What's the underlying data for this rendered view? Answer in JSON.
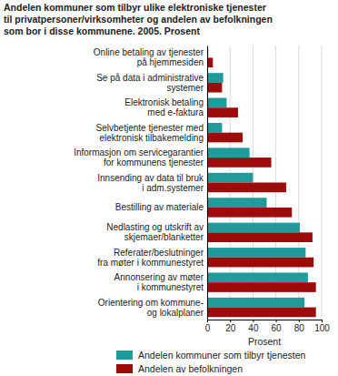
{
  "chart_data": {
    "type": "bar",
    "orientation": "horizontal",
    "title": "Andelen kommuner som tilbyr ulike elektroniske tjenester\ntil privatpersoner/virksomheter og andelen av befolkningen\nsom bor i disse kommunene. 2005. Prosent",
    "x_label": "Prosent",
    "categories": [
      "Online betaling av tjenester\npå hjemmesiden",
      "Se på data i administrative\nsystemer",
      "Elektronisk betaling\nmed e-faktura",
      "Selvbetjente tjenester med\nelektronisk tilbakemelding",
      "Informasjon om servicegarantier\nfor kommunens tjenester",
      "Innsending av data til bruk\ni adm.systemer",
      "Bestilling av materiale",
      "Nedlasting og utskrift av\nskjemaer/blanketter",
      "Referater/beslutninger\nfra møter i kommunestyret",
      "Annonsering av møter\ni kommunestyret",
      "Orientering om kommune-\nog lokalplaner"
    ],
    "series": [
      {
        "name": "Andelen kommuner som tilbyr tjenesten",
        "color": "#1f9b9b",
        "values": [
          1,
          14,
          17,
          13,
          37,
          40,
          52,
          81,
          86,
          88,
          85
        ]
      },
      {
        "name": "Andelen av befolkningen",
        "color": "#9e0b0b",
        "values": [
          5,
          13,
          27,
          31,
          56,
          69,
          74,
          92,
          93,
          95,
          95
        ]
      }
    ],
    "xlim": [
      0,
      100
    ],
    "xticks": [
      0,
      20,
      40,
      60,
      80,
      100
    ],
    "grid": true,
    "legend": "bottom"
  }
}
